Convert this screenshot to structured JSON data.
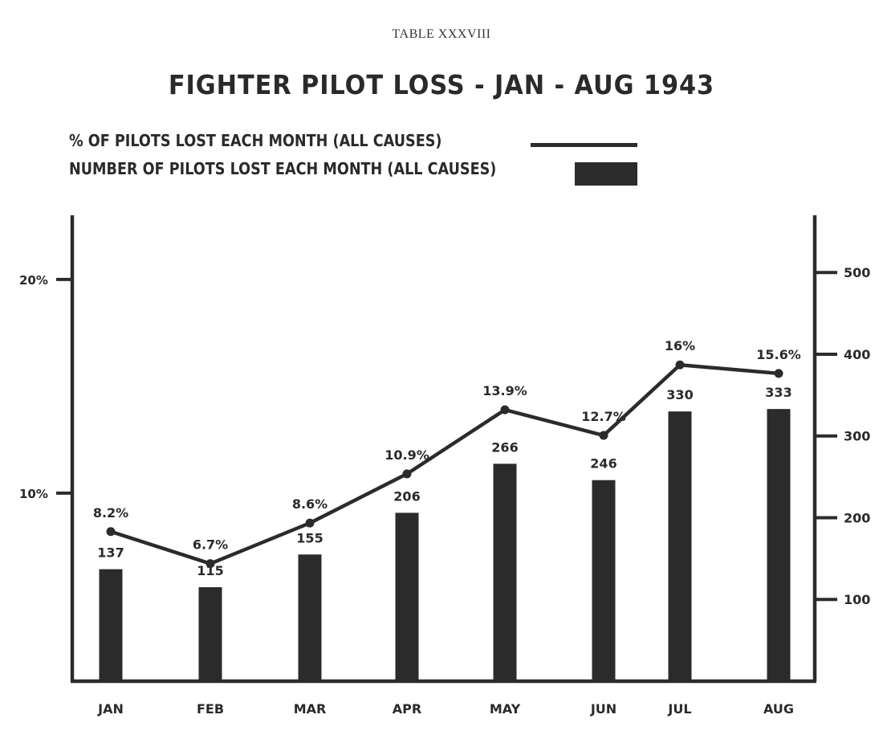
{
  "table_id": "TABLE XXXVIII",
  "chart_data": {
    "type": "bar",
    "title": "FIGHTER PILOT LOSS - JAN - AUG 1943",
    "categories": [
      "JAN",
      "FEB",
      "MAR",
      "APR",
      "MAY",
      "JUN",
      "JUL",
      "AUG"
    ],
    "series": [
      {
        "name": "NUMBER OF PILOTS LOST EACH MONTH (ALL CAUSES)",
        "type": "bar",
        "axis": "right",
        "values": [
          137,
          115,
          155,
          206,
          266,
          246,
          330,
          333
        ],
        "labels": [
          "137",
          "115",
          "155",
          "206",
          "266",
          "246",
          "330",
          "333"
        ],
        "color": "#2b2b2b"
      },
      {
        "name": "% OF PILOTS LOST EACH MONTH (ALL CAUSES)",
        "type": "line",
        "axis": "left",
        "values": [
          8.2,
          6.7,
          8.6,
          10.9,
          13.9,
          12.7,
          16,
          15.6
        ],
        "labels": [
          "8.2%",
          "6.7%",
          "8.6%",
          "10.9%",
          "13.9%",
          "12.7%",
          "16%",
          "15.6%"
        ],
        "color": "#2b2b2b"
      }
    ],
    "y_left": {
      "ticks": [
        10,
        20
      ],
      "tick_labels": [
        "10%",
        "20%"
      ],
      "range": [
        1.2,
        23
      ]
    },
    "y_right": {
      "ticks": [
        100,
        200,
        300,
        400,
        500
      ],
      "tick_labels": [
        "100",
        "200",
        "300",
        "400",
        "500"
      ],
      "range": [
        0,
        570
      ]
    },
    "grid": false,
    "legend_position": "top-left"
  }
}
